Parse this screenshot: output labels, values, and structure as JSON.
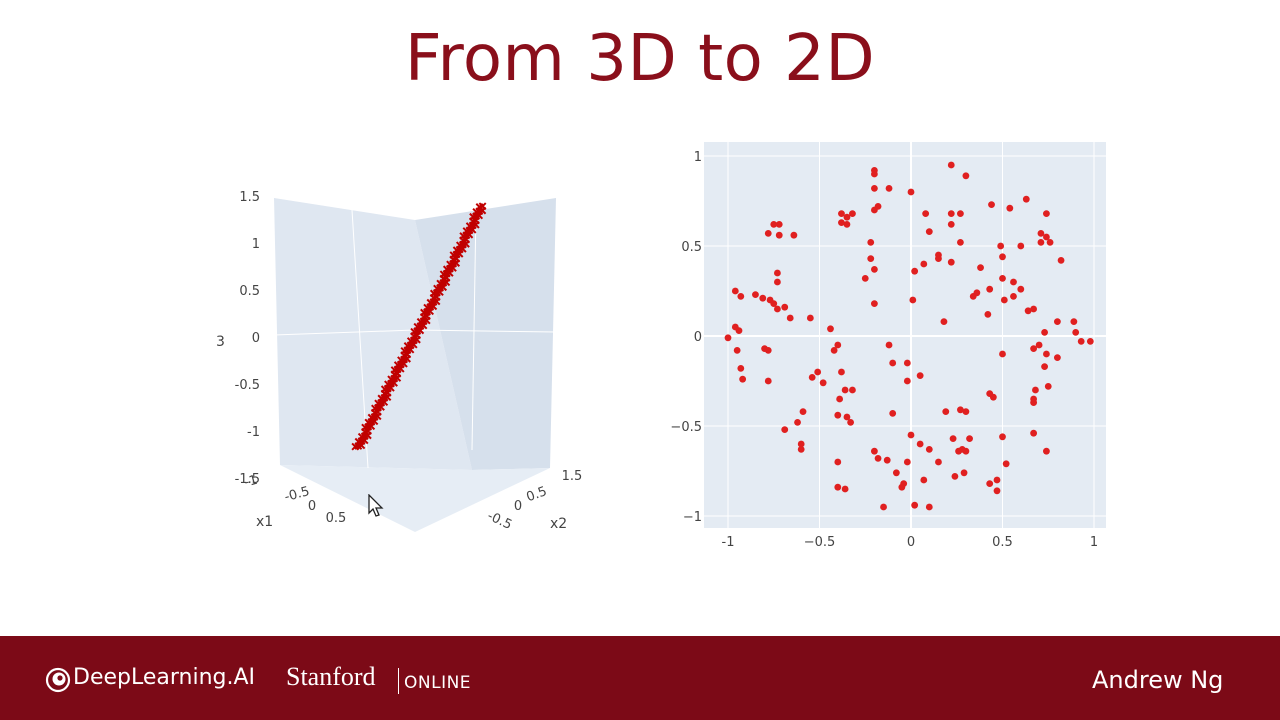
{
  "slide": {
    "title": "From 3D to 2D"
  },
  "footer": {
    "logo_text": "DeepLearning.AI",
    "stanford": "Stanford",
    "online": "ONLINE",
    "author": "Andrew Ng"
  },
  "colors": {
    "brand_red": "#8a0f1b",
    "footer_bg": "#7c0a17",
    "plot_bg": "#dde6f0",
    "marker": "#e02020",
    "marker_dark": "#c00000"
  },
  "chart_data": [
    {
      "type": "scatter3d",
      "marker": "x",
      "axes": {
        "x": {
          "label": "x1",
          "ticks": [
            "-1",
            "-0.5",
            "0",
            "0.5"
          ]
        },
        "y": {
          "label": "x2",
          "ticks": [
            "-0.5",
            "0",
            "0.5",
            "1.5"
          ]
        },
        "z": {
          "label": "3",
          "ticks": [
            "1.5",
            "1",
            "0.5",
            "0",
            "-0.5",
            "-1",
            "-1.5"
          ],
          "range": [
            -1.5,
            1.5
          ]
        }
      },
      "line_segment": {
        "z_start": -1.2,
        "z_end": 1.5,
        "n_points": 140
      }
    },
    {
      "type": "scatter",
      "marker": "circle",
      "xlim": [
        -1,
        1
      ],
      "ylim": [
        -1,
        1
      ],
      "xticks": [
        "-1",
        "−0.5",
        "0",
        "0.5",
        "1"
      ],
      "yticks": [
        "1",
        "0.5",
        "0",
        "−0.5",
        "−1"
      ],
      "points": [
        [
          -0.75,
          0.62
        ],
        [
          -0.72,
          0.62
        ],
        [
          -0.78,
          0.57
        ],
        [
          -0.72,
          0.56
        ],
        [
          -0.64,
          0.56
        ],
        [
          -0.38,
          0.68
        ],
        [
          -0.35,
          0.66
        ],
        [
          -0.32,
          0.68
        ],
        [
          -0.38,
          0.63
        ],
        [
          -0.35,
          0.62
        ],
        [
          -0.2,
          0.92
        ],
        [
          -0.2,
          0.9
        ],
        [
          -0.2,
          0.82
        ],
        [
          -0.12,
          0.82
        ],
        [
          -0.2,
          0.7
        ],
        [
          -0.18,
          0.72
        ],
        [
          -0.22,
          0.52
        ],
        [
          -0.22,
          0.43
        ],
        [
          -0.2,
          0.37
        ],
        [
          -0.25,
          0.32
        ],
        [
          0,
          0.8
        ],
        [
          0.08,
          0.68
        ],
        [
          0.1,
          0.58
        ],
        [
          0.07,
          0.4
        ],
        [
          0.15,
          0.45
        ],
        [
          0.15,
          0.43
        ],
        [
          0.02,
          0.36
        ],
        [
          0.22,
          0.95
        ],
        [
          0.3,
          0.89
        ],
        [
          0.22,
          0.68
        ],
        [
          0.22,
          0.62
        ],
        [
          0.27,
          0.68
        ],
        [
          0.27,
          0.52
        ],
        [
          0.22,
          0.41
        ],
        [
          0.38,
          0.38
        ],
        [
          0.44,
          0.73
        ],
        [
          0.54,
          0.71
        ],
        [
          0.63,
          0.76
        ],
        [
          0.74,
          0.68
        ],
        [
          0.71,
          0.57
        ],
        [
          0.74,
          0.55
        ],
        [
          0.71,
          0.52
        ],
        [
          0.76,
          0.52
        ],
        [
          0.49,
          0.5
        ],
        [
          0.6,
          0.5
        ],
        [
          0.5,
          0.44
        ],
        [
          0.82,
          0.42
        ],
        [
          0.5,
          0.32
        ],
        [
          0.56,
          0.3
        ],
        [
          0.43,
          0.26
        ],
        [
          0.6,
          0.26
        ],
        [
          0.56,
          0.22
        ],
        [
          0.36,
          0.24
        ],
        [
          0.34,
          0.22
        ],
        [
          0.51,
          0.2
        ],
        [
          0.64,
          0.14
        ],
        [
          0.67,
          0.15
        ],
        [
          0.42,
          0.12
        ],
        [
          -0.96,
          0.25
        ],
        [
          -0.93,
          0.22
        ],
        [
          -0.85,
          0.23
        ],
        [
          -0.81,
          0.21
        ],
        [
          -0.77,
          0.2
        ],
        [
          -0.75,
          0.18
        ],
        [
          -0.73,
          0.15
        ],
        [
          -0.69,
          0.16
        ],
        [
          -0.73,
          0.3
        ],
        [
          -0.73,
          0.35
        ],
        [
          -0.66,
          0.1
        ],
        [
          -0.55,
          0.1
        ],
        [
          -0.2,
          0.18
        ],
        [
          0.01,
          0.2
        ],
        [
          -0.96,
          0.05
        ],
        [
          -0.94,
          0.03
        ],
        [
          -1.0,
          -0.01
        ],
        [
          -0.95,
          -0.08
        ],
        [
          -0.93,
          -0.18
        ],
        [
          -0.92,
          -0.24
        ],
        [
          -0.8,
          -0.07
        ],
        [
          -0.78,
          -0.08
        ],
        [
          -0.78,
          -0.25
        ],
        [
          -0.44,
          0.04
        ],
        [
          -0.4,
          -0.05
        ],
        [
          -0.42,
          -0.08
        ],
        [
          -0.12,
          -0.05
        ],
        [
          0.18,
          0.08
        ],
        [
          0.8,
          0.08
        ],
        [
          0.89,
          0.08
        ],
        [
          0.9,
          0.02
        ],
        [
          0.93,
          -0.03
        ],
        [
          0.98,
          -0.03
        ],
        [
          0.73,
          0.02
        ],
        [
          0.7,
          -0.05
        ],
        [
          0.67,
          -0.07
        ],
        [
          0.5,
          -0.1
        ],
        [
          0.74,
          -0.1
        ],
        [
          0.8,
          -0.12
        ],
        [
          0.73,
          -0.17
        ],
        [
          0.75,
          -0.28
        ],
        [
          0.68,
          -0.3
        ],
        [
          0.67,
          -0.35
        ],
        [
          0.67,
          -0.37
        ],
        [
          0.43,
          -0.32
        ],
        [
          0.45,
          -0.34
        ],
        [
          -0.54,
          -0.23
        ],
        [
          -0.48,
          -0.26
        ],
        [
          -0.51,
          -0.2
        ],
        [
          -0.38,
          -0.2
        ],
        [
          -0.36,
          -0.3
        ],
        [
          -0.39,
          -0.35
        ],
        [
          -0.32,
          -0.3
        ],
        [
          -0.1,
          -0.15
        ],
        [
          -0.02,
          -0.15
        ],
        [
          0.05,
          -0.22
        ],
        [
          -0.02,
          -0.25
        ],
        [
          -0.4,
          -0.44
        ],
        [
          -0.35,
          -0.45
        ],
        [
          -0.33,
          -0.48
        ],
        [
          -0.59,
          -0.42
        ],
        [
          -0.62,
          -0.48
        ],
        [
          -0.69,
          -0.52
        ],
        [
          -0.6,
          -0.6
        ],
        [
          -0.6,
          -0.63
        ],
        [
          -0.1,
          -0.43
        ],
        [
          0.19,
          -0.42
        ],
        [
          0.27,
          -0.41
        ],
        [
          0.3,
          -0.42
        ],
        [
          0.23,
          -0.57
        ],
        [
          0.32,
          -0.57
        ],
        [
          0.26,
          -0.64
        ],
        [
          0.28,
          -0.63
        ],
        [
          0.3,
          -0.64
        ],
        [
          0.5,
          -0.56
        ],
        [
          0.74,
          -0.64
        ],
        [
          0.67,
          -0.54
        ],
        [
          -0.4,
          -0.7
        ],
        [
          -0.4,
          -0.84
        ],
        [
          -0.36,
          -0.85
        ],
        [
          -0.2,
          -0.64
        ],
        [
          -0.18,
          -0.68
        ],
        [
          -0.13,
          -0.69
        ],
        [
          -0.08,
          -0.76
        ],
        [
          -0.02,
          -0.7
        ],
        [
          0,
          -0.55
        ],
        [
          0.05,
          -0.6
        ],
        [
          0.1,
          -0.63
        ],
        [
          0.15,
          -0.7
        ],
        [
          -0.05,
          -0.84
        ],
        [
          -0.04,
          -0.82
        ],
        [
          0.07,
          -0.8
        ],
        [
          0.24,
          -0.78
        ],
        [
          0.29,
          -0.76
        ],
        [
          0.43,
          -0.82
        ],
        [
          0.47,
          -0.8
        ],
        [
          0.47,
          -0.86
        ],
        [
          0.52,
          -0.71
        ],
        [
          -0.15,
          -0.95
        ],
        [
          0.02,
          -0.94
        ],
        [
          0.1,
          -0.95
        ]
      ]
    }
  ]
}
